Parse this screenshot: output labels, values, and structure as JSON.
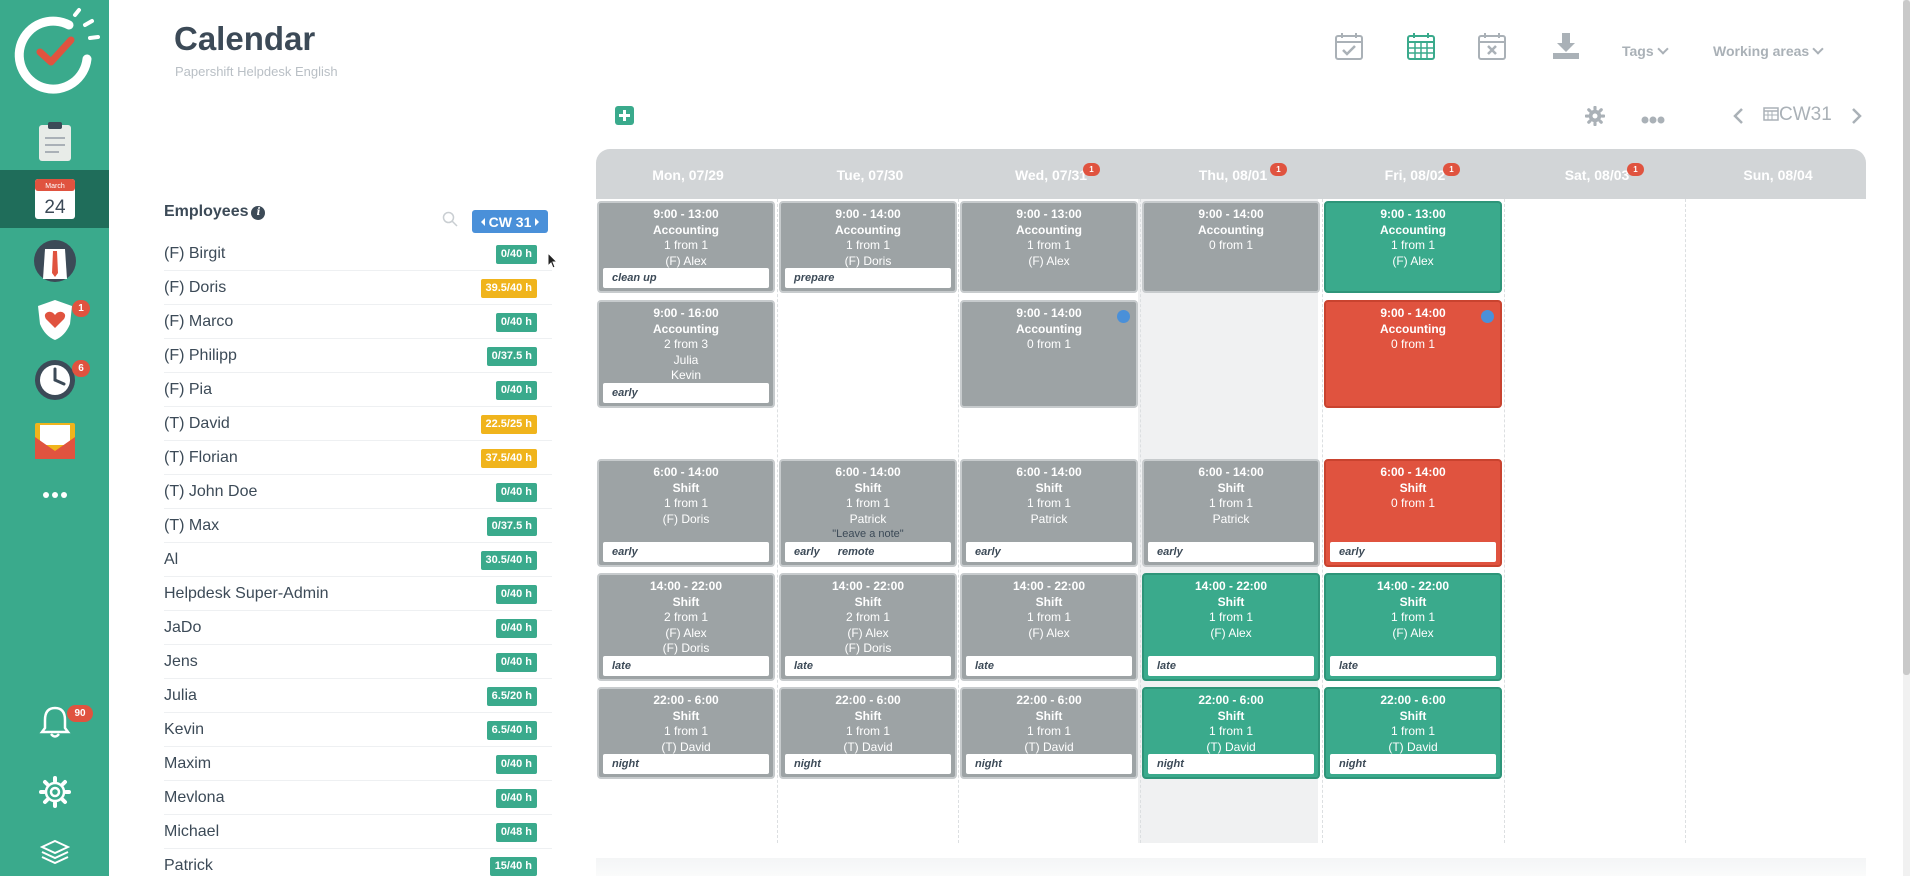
{
  "page": {
    "title": "Calendar",
    "subtitle": "Papershift Helpdesk English"
  },
  "sidebar": {
    "items": [
      {
        "name": "logo",
        "icon": "papershift-logo-icon"
      },
      {
        "name": "clipboard",
        "icon": "clipboard-icon"
      },
      {
        "name": "calendar",
        "icon": "calendar-icon",
        "month": "March",
        "day": "24",
        "active": true
      },
      {
        "name": "employees",
        "icon": "employee-avatar-icon"
      },
      {
        "name": "absences",
        "icon": "heart-shield-icon",
        "badge": "1"
      },
      {
        "name": "time-tracking",
        "icon": "clock-icon",
        "badge": "6"
      },
      {
        "name": "messages",
        "icon": "envelope-icon"
      },
      {
        "name": "more",
        "icon": "more-dots-icon"
      }
    ],
    "bottom": [
      {
        "name": "notifications",
        "icon": "bell-icon",
        "badge": "90"
      },
      {
        "name": "settings",
        "icon": "gear-icon"
      },
      {
        "name": "help",
        "icon": "stack-icon"
      }
    ]
  },
  "toolbar": {
    "tags_label": "Tags",
    "working_areas_label": "Working areas",
    "icons": [
      "calendar-check-icon",
      "calendar-grid-icon",
      "calendar-x-icon",
      "download-icon"
    ]
  },
  "employees": {
    "title": "Employees",
    "cw_label": "CW 31",
    "list": [
      {
        "name": "(F) Birgit",
        "hours": "0/40 h",
        "status": "ok"
      },
      {
        "name": "(F) Doris",
        "hours": "39.5/40 h",
        "status": "warn"
      },
      {
        "name": "(F) Marco",
        "hours": "0/40 h",
        "status": "ok"
      },
      {
        "name": "(F) Philipp",
        "hours": "0/37.5 h",
        "status": "ok"
      },
      {
        "name": "(F) Pia",
        "hours": "0/40 h",
        "status": "ok"
      },
      {
        "name": "(T) David",
        "hours": "22.5/25 h",
        "status": "warn"
      },
      {
        "name": "(T) Florian",
        "hours": "37.5/40 h",
        "status": "warn"
      },
      {
        "name": "(T) John Doe",
        "hours": "0/40 h",
        "status": "ok"
      },
      {
        "name": "(T) Max",
        "hours": "0/37.5 h",
        "status": "ok"
      },
      {
        "name": "Al",
        "hours": "30.5/40 h",
        "status": "ok"
      },
      {
        "name": "Helpdesk Super-Admin",
        "hours": "0/40 h",
        "status": "ok"
      },
      {
        "name": "JaDo",
        "hours": "0/40 h",
        "status": "ok"
      },
      {
        "name": "Jens",
        "hours": "0/40 h",
        "status": "ok"
      },
      {
        "name": "Julia",
        "hours": "6.5/20 h",
        "status": "ok"
      },
      {
        "name": "Kevin",
        "hours": "6.5/40 h",
        "status": "ok"
      },
      {
        "name": "Maxim",
        "hours": "0/40 h",
        "status": "ok"
      },
      {
        "name": "Mevlona",
        "hours": "0/40 h",
        "status": "ok"
      },
      {
        "name": "Michael",
        "hours": "0/48 h",
        "status": "ok"
      },
      {
        "name": "Patrick",
        "hours": "15/40 h",
        "status": "ok"
      }
    ]
  },
  "calendar": {
    "week_label": "CW31",
    "days": [
      {
        "label": "Mon, 07/29",
        "badge": ""
      },
      {
        "label": "Tue, 07/30",
        "badge": ""
      },
      {
        "label": "Wed, 07/31",
        "badge": "1"
      },
      {
        "label": "Thu, 08/01",
        "badge": "1"
      },
      {
        "label": "Fri, 08/02",
        "badge": "1"
      },
      {
        "label": "Sat, 08/03",
        "badge": "1"
      },
      {
        "label": "Sun, 08/04",
        "badge": ""
      }
    ],
    "shifts": [
      {
        "day": 0,
        "row": 0,
        "color": "gray",
        "time": "9:00 - 13:00",
        "type": "Accounting",
        "count": "1 from 1",
        "staff": [
          "(F) Alex"
        ],
        "tags": [
          "clean up"
        ]
      },
      {
        "day": 1,
        "row": 0,
        "color": "gray",
        "time": "9:00 - 14:00",
        "type": "Accounting",
        "count": "1 from 1",
        "staff": [
          "(F) Doris"
        ],
        "tags": [
          "prepare"
        ]
      },
      {
        "day": 2,
        "row": 0,
        "color": "gray",
        "time": "9:00 - 13:00",
        "type": "Accounting",
        "count": "1 from 1",
        "staff": [
          "(F) Alex"
        ],
        "tags": []
      },
      {
        "day": 3,
        "row": 0,
        "color": "gray",
        "time": "9:00 - 14:00",
        "type": "Accounting",
        "count": "0 from 1",
        "staff": [],
        "tags": []
      },
      {
        "day": 4,
        "row": 0,
        "color": "green",
        "time": "9:00 - 13:00",
        "type": "Accounting",
        "count": "1 from 1",
        "staff": [
          "(F) Alex"
        ],
        "tags": []
      },
      {
        "day": 0,
        "row": 1,
        "color": "gray",
        "time": "9:00 - 16:00",
        "type": "Accounting",
        "count": "2 from 3",
        "staff": [
          "Julia",
          "Kevin"
        ],
        "tags": [
          "early"
        ]
      },
      {
        "day": 2,
        "row": 1,
        "color": "gray",
        "time": "9:00 - 14:00",
        "type": "Accounting",
        "count": "0 from 1",
        "staff": [],
        "tags": [],
        "dot": true
      },
      {
        "day": 4,
        "row": 1,
        "color": "red",
        "time": "9:00 - 14:00",
        "type": "Accounting",
        "count": "0 from 1",
        "staff": [],
        "tags": [],
        "dot": true
      },
      {
        "day": 0,
        "row": 2,
        "color": "gray",
        "time": "6:00 - 14:00",
        "type": "Shift",
        "count": "1 from 1",
        "staff": [
          "(F) Doris"
        ],
        "tags": [
          "early"
        ]
      },
      {
        "day": 1,
        "row": 2,
        "color": "gray",
        "time": "6:00 - 14:00",
        "type": "Shift",
        "count": "1 from 1",
        "staff": [
          "Patrick"
        ],
        "note": "\"Leave a note\"",
        "tags": [
          "early",
          "remote"
        ]
      },
      {
        "day": 2,
        "row": 2,
        "color": "gray",
        "time": "6:00 - 14:00",
        "type": "Shift",
        "count": "1 from 1",
        "staff": [
          "Patrick"
        ],
        "tags": [
          "early"
        ]
      },
      {
        "day": 3,
        "row": 2,
        "color": "gray",
        "time": "6:00 - 14:00",
        "type": "Shift",
        "count": "1 from 1",
        "staff": [
          "Patrick"
        ],
        "tags": [
          "early"
        ]
      },
      {
        "day": 4,
        "row": 2,
        "color": "red",
        "time": "6:00 - 14:00",
        "type": "Shift",
        "count": "0 from 1",
        "staff": [],
        "tags": [
          "early"
        ]
      },
      {
        "day": 0,
        "row": 3,
        "color": "gray",
        "time": "14:00 - 22:00",
        "type": "Shift",
        "count": "2 from 1",
        "staff": [
          "(F) Alex",
          "(F) Doris"
        ],
        "tags": [
          "late"
        ]
      },
      {
        "day": 1,
        "row": 3,
        "color": "gray",
        "time": "14:00 - 22:00",
        "type": "Shift",
        "count": "2 from 1",
        "staff": [
          "(F) Alex",
          "(F) Doris"
        ],
        "tags": [
          "late"
        ]
      },
      {
        "day": 2,
        "row": 3,
        "color": "gray",
        "time": "14:00 - 22:00",
        "type": "Shift",
        "count": "1 from 1",
        "staff": [
          "(F) Alex"
        ],
        "tags": [
          "late"
        ]
      },
      {
        "day": 3,
        "row": 3,
        "color": "green",
        "time": "14:00 - 22:00",
        "type": "Shift",
        "count": "1 from 1",
        "staff": [
          "(F) Alex"
        ],
        "tags": [
          "late"
        ]
      },
      {
        "day": 4,
        "row": 3,
        "color": "green",
        "time": "14:00 - 22:00",
        "type": "Shift",
        "count": "1 from 1",
        "staff": [
          "(F) Alex"
        ],
        "tags": [
          "late"
        ]
      },
      {
        "day": 0,
        "row": 4,
        "color": "gray",
        "time": "22:00 - 6:00",
        "type": "Shift",
        "count": "1 from 1",
        "staff": [
          "(T) David"
        ],
        "tags": [
          "night"
        ]
      },
      {
        "day": 1,
        "row": 4,
        "color": "gray",
        "time": "22:00 - 6:00",
        "type": "Shift",
        "count": "1 from 1",
        "staff": [
          "(T) David"
        ],
        "tags": [
          "night"
        ]
      },
      {
        "day": 2,
        "row": 4,
        "color": "gray",
        "time": "22:00 - 6:00",
        "type": "Shift",
        "count": "1 from 1",
        "staff": [
          "(T) David"
        ],
        "tags": [
          "night"
        ]
      },
      {
        "day": 3,
        "row": 4,
        "color": "green",
        "time": "22:00 - 6:00",
        "type": "Shift",
        "count": "1 from 1",
        "staff": [
          "(T) David"
        ],
        "tags": [
          "night"
        ]
      },
      {
        "day": 4,
        "row": 4,
        "color": "green",
        "time": "22:00 - 6:00",
        "type": "Shift",
        "count": "1 from 1",
        "staff": [
          "(T) David"
        ],
        "tags": [
          "night"
        ]
      }
    ]
  },
  "colors": {
    "brand": "#3aaa8c",
    "brand_dark": "#1f6d5a",
    "shift_gray": "#9da3a5",
    "shift_green": "#3aaa8c",
    "shift_red": "#e0533f",
    "hours_warn": "#f0b41c",
    "accent_blue": "#4a90d9"
  }
}
